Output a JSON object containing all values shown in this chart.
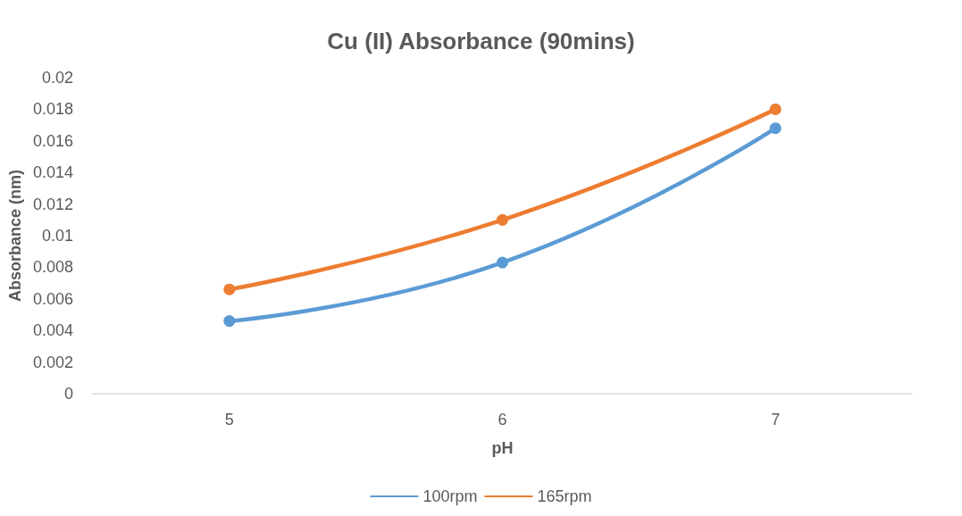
{
  "chart_data": {
    "type": "line",
    "title": "Cu (II) Absorbance (90mins)",
    "xlabel": "pH",
    "ylabel": "Absorbance (nm)",
    "categories": [
      "5",
      "6",
      "7"
    ],
    "series": [
      {
        "name": "100rpm",
        "color": "#5b9bd5",
        "values": [
          0.0046,
          0.0083,
          0.0168
        ]
      },
      {
        "name": "165rpm",
        "color": "#ed7d31",
        "values": [
          0.0066,
          0.011,
          0.018
        ]
      }
    ],
    "ylim": [
      0,
      0.02
    ],
    "yticks": [
      0,
      0.002,
      0.004,
      0.006,
      0.008,
      0.01,
      0.012,
      0.014,
      0.016,
      0.018,
      0.02
    ],
    "grid": false,
    "legend": "bottom",
    "marker": "circle",
    "line_style": "solid"
  }
}
